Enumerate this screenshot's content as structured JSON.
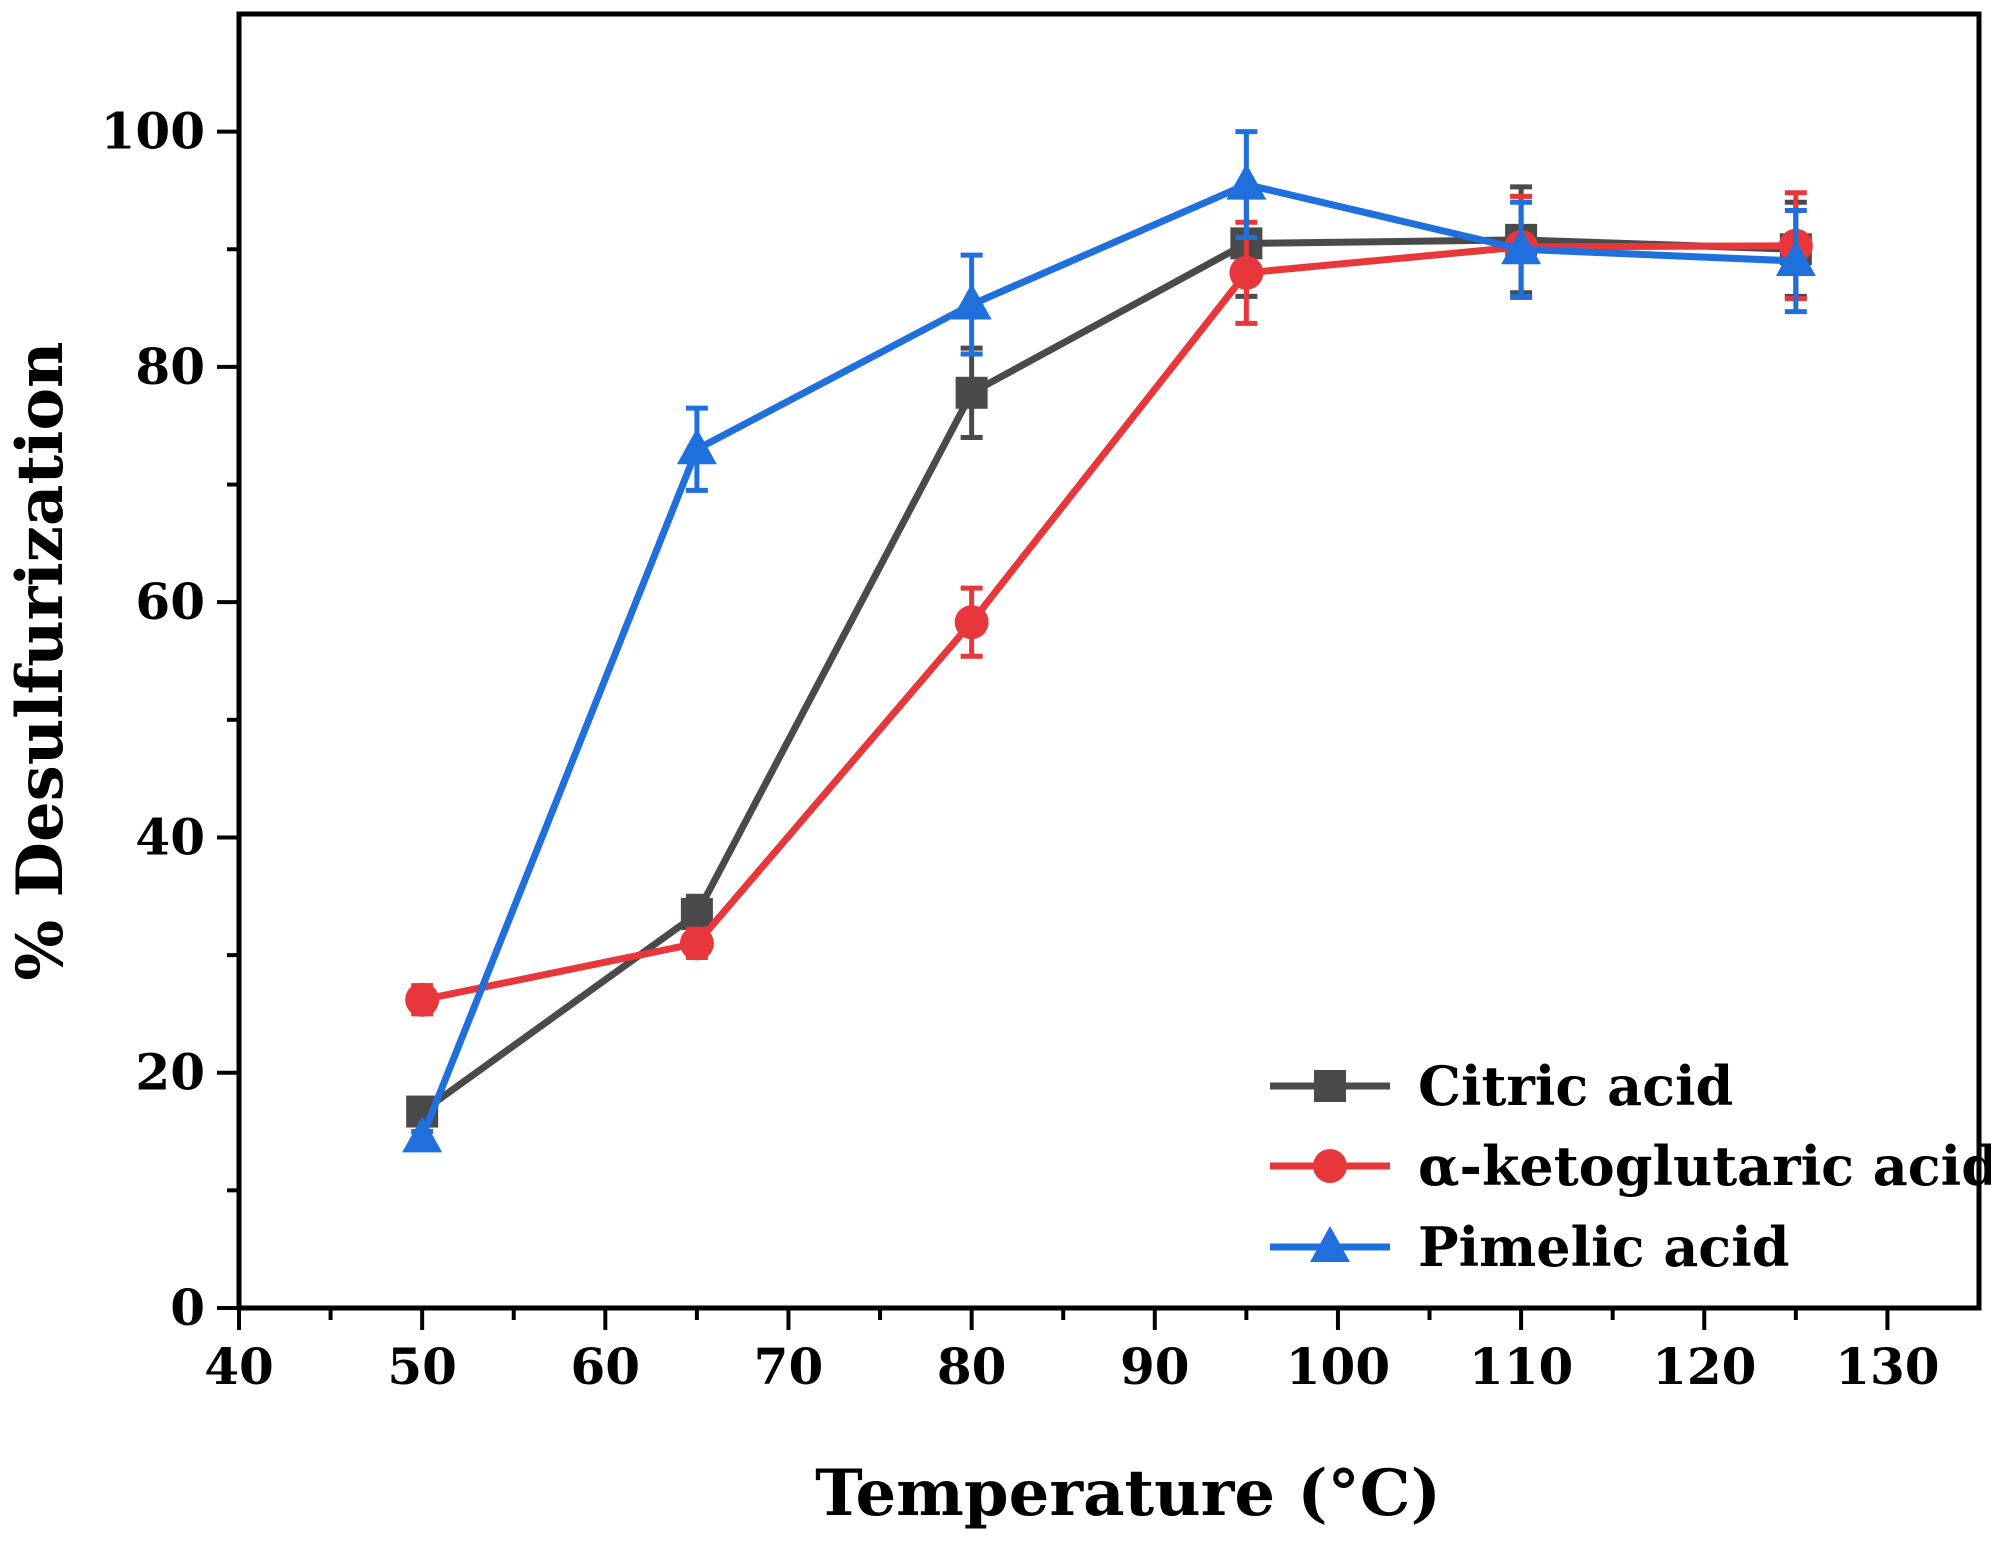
{
  "chart_data": {
    "type": "line",
    "title": "",
    "xlabel": "Temperature (°C)",
    "ylabel": "% Desulfurization",
    "xlim": [
      40,
      135
    ],
    "ylim": [
      0,
      110
    ],
    "xticks": [
      40,
      50,
      60,
      70,
      80,
      90,
      100,
      110,
      120,
      130
    ],
    "yticks": [
      0,
      20,
      40,
      60,
      80,
      100
    ],
    "grid": false,
    "legend_position": "bottom-right",
    "x": [
      50,
      65,
      80,
      95,
      110,
      125
    ],
    "series": [
      {
        "name": "Citric acid",
        "color": "#4a4a4a",
        "marker": "square",
        "values": [
          16.7,
          33.5,
          77.8,
          90.5,
          90.8,
          90.0
        ],
        "errors": [
          0.8,
          1.5,
          3.8,
          4.5,
          4.5,
          4.0
        ]
      },
      {
        "name": "α-ketoglutaric acid",
        "color": "#e8373a",
        "marker": "circle",
        "values": [
          26.2,
          31.0,
          58.3,
          88.0,
          90.2,
          90.3
        ],
        "errors": [
          1.2,
          1.2,
          2.9,
          4.3,
          4.3,
          4.5
        ]
      },
      {
        "name": "Pimelic acid",
        "color": "#1f6fdc",
        "marker": "triangle",
        "values": [
          14.5,
          73.0,
          85.3,
          95.5,
          90.0,
          89.0
        ],
        "errors": [
          0.5,
          3.5,
          4.2,
          4.5,
          4.0,
          4.3
        ]
      }
    ]
  }
}
